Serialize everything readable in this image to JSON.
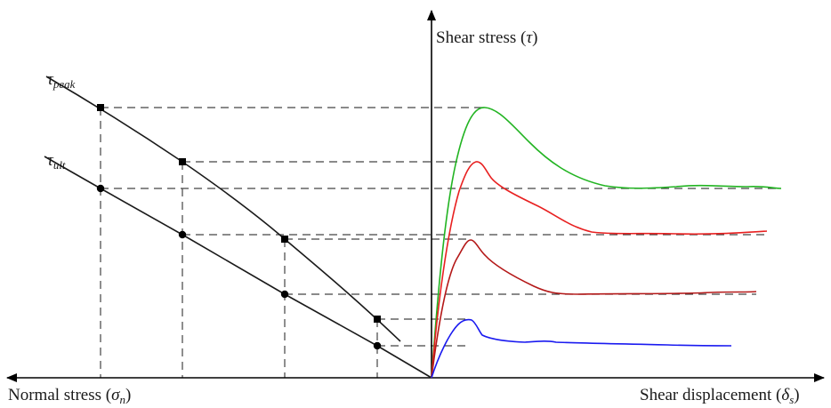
{
  "labels": {
    "y_axis_main": "Shear stress (",
    "y_axis_symbol": "τ",
    "y_axis_close": ")",
    "x_left_main": "Normal stress (",
    "x_left_symbol": "σ",
    "x_left_sub": "n",
    "x_left_close": ")",
    "x_right_main": "Shear displacement (",
    "x_right_symbol": "δ",
    "x_right_sub": "s",
    "x_right_close": ")",
    "peak_symbol": "τ",
    "peak_sub": "peak",
    "ult_symbol": "τ",
    "ult_sub": "ult"
  },
  "colors": {
    "green": "#22b422",
    "red": "#e82020",
    "darkred": "#b41818",
    "blue": "#1a1af0",
    "envelope": "#1a1a1a",
    "guide": "#444444"
  }
}
